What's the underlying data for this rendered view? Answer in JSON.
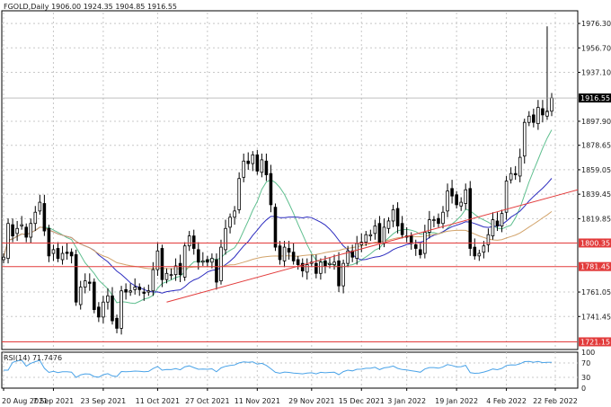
{
  "header": {
    "symbol": "FGOLD",
    "timeframe": "Daily",
    "ohlc": "1906.00 1924.35 1904.85 1916.55"
  },
  "rsi_header": "RSI(14) 71.7476",
  "colors": {
    "background": "#ffffff",
    "grid": "#c8c8c8",
    "candle": "#000000",
    "ma_fast": "#5fbf8f",
    "ma_mid": "#2b2bbf",
    "ma_slow": "#d2a36a",
    "level": "#e23b3b",
    "rsi": "#4aa3e8",
    "price_tag_bg": "#000000",
    "level_tag_bg": "#e23b3b"
  },
  "chart_data": {
    "type": "candlestick",
    "title": "FGOLD,Daily 1906.00 1924.35 1904.85 1916.55",
    "ylim": [
      1715,
      1985
    ],
    "y_ticks": [
      "1976.30",
      "1956.70",
      "1937.10",
      "1897.90",
      "1878.65",
      "1859.05",
      "1839.45",
      "1819.85",
      "1761.05",
      "1741.45"
    ],
    "x_ticks": [
      "20 Aug 2021",
      "7 Sep 2021",
      "23 Sep 2021",
      "11 Oct 2021",
      "27 Oct 2021",
      "11 Nov 2021",
      "29 Nov 2021",
      "15 Dec 2021",
      "3 Jan 2022",
      "19 Jan 2022",
      "4 Feb 2022",
      "22 Feb 2022"
    ],
    "grid": true,
    "current_price": "1916.55",
    "levels": [
      {
        "price": "1800.35",
        "value": 1800.35
      },
      {
        "price": "1781.45",
        "value": 1781.45
      },
      {
        "price": "1721.15",
        "value": 1721.15
      }
    ],
    "trendline": {
      "start": [
        36,
        1753
      ],
      "end": [
        93,
        1843
      ]
    },
    "closes": [
      1789,
      1816,
      1806,
      1812,
      1815,
      1805,
      1816,
      1825,
      1833,
      1810,
      1790,
      1795,
      1788,
      1792,
      1792,
      1790,
      1753,
      1765,
      1770,
      1768,
      1747,
      1741,
      1753,
      1758,
      1738,
      1732,
      1762,
      1761,
      1762,
      1765,
      1763,
      1760,
      1762,
      1779,
      1794,
      1771,
      1776,
      1775,
      1782,
      1775,
      1798,
      1806,
      1796,
      1785,
      1786,
      1785,
      1788,
      1769,
      1797,
      1812,
      1821,
      1826,
      1852,
      1866,
      1864,
      1871,
      1858,
      1867,
      1855,
      1831,
      1797,
      1787,
      1797,
      1793,
      1786,
      1783,
      1778,
      1783,
      1785,
      1776,
      1785,
      1782,
      1784,
      1785,
      1766,
      1784,
      1794,
      1789,
      1800,
      1801,
      1807,
      1807,
      1814,
      1801,
      1813,
      1818,
      1827,
      1814,
      1807,
      1805,
      1800,
      1796,
      1791,
      1809,
      1819,
      1819,
      1816,
      1825,
      1842,
      1838,
      1831,
      1833,
      1843,
      1796,
      1790,
      1792,
      1798,
      1807,
      1819,
      1814,
      1824,
      1850,
      1856,
      1855,
      1869,
      1897,
      1902,
      1897,
      1909,
      1903,
      1906,
      1916.55
    ],
    "opens": [
      1787,
      1788,
      1815,
      1808,
      1814,
      1813,
      1805,
      1816,
      1826,
      1832,
      1812,
      1792,
      1796,
      1787,
      1793,
      1793,
      1791,
      1751,
      1765,
      1769,
      1769,
      1749,
      1741,
      1753,
      1758,
      1740,
      1732,
      1763,
      1761,
      1763,
      1765,
      1761,
      1761,
      1762,
      1779,
      1796,
      1771,
      1775,
      1775,
      1784,
      1773,
      1798,
      1806,
      1795,
      1785,
      1787,
      1785,
      1787,
      1770,
      1795,
      1813,
      1821,
      1827,
      1853,
      1866,
      1864,
      1871,
      1857,
      1866,
      1856,
      1829,
      1798,
      1786,
      1796,
      1793,
      1787,
      1784,
      1777,
      1784,
      1784,
      1776,
      1786,
      1783,
      1783,
      1786,
      1766,
      1784,
      1794,
      1788,
      1799,
      1801,
      1806,
      1808,
      1816,
      1800,
      1812,
      1818,
      1828,
      1816,
      1806,
      1806,
      1799,
      1795,
      1792,
      1809,
      1819,
      1820,
      1816,
      1826,
      1844,
      1839,
      1830,
      1832,
      1844,
      1797,
      1790,
      1793,
      1799,
      1806,
      1818,
      1814,
      1825,
      1851,
      1856,
      1854,
      1870,
      1897,
      1903,
      1896,
      1908,
      1902,
      1906.0
    ],
    "rsi": {
      "label": "RSI(14)",
      "value": "71.7476",
      "ylim": [
        0,
        100
      ],
      "ticks": [
        "100",
        "70",
        "30",
        "0"
      ]
    }
  }
}
